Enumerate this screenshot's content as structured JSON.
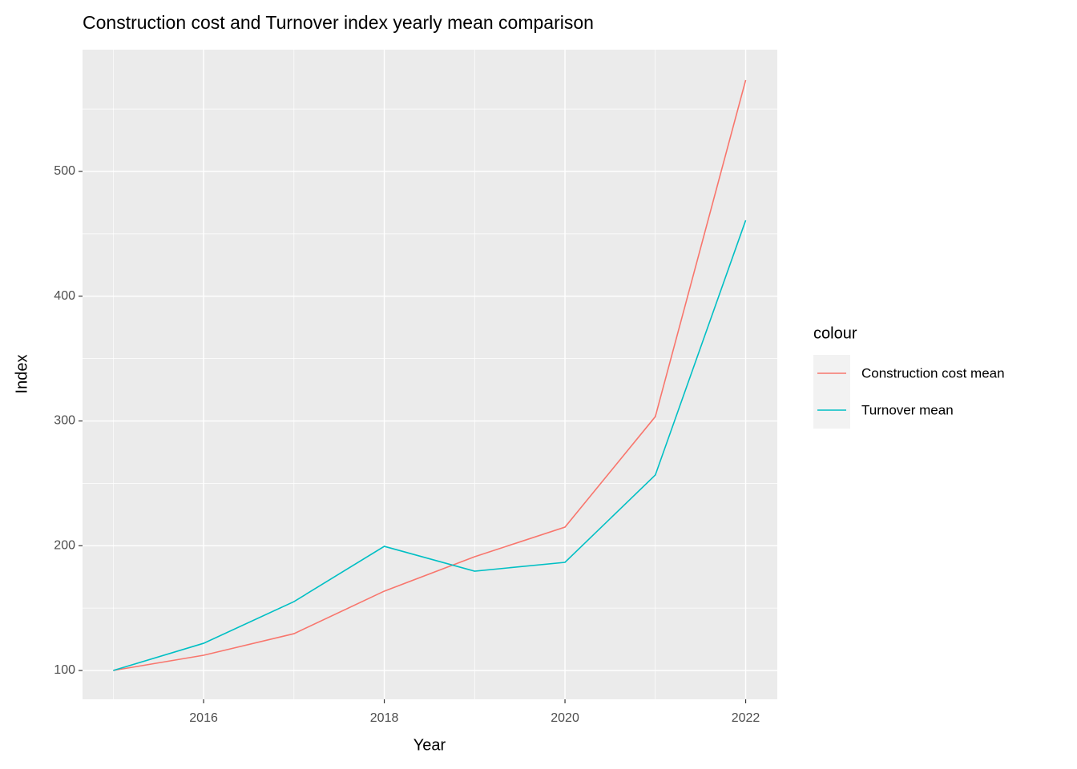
{
  "chart_data": {
    "type": "line",
    "title": "Construction cost and Turnover index yearly mean comparison",
    "x_label": "Year",
    "y_label": "Index",
    "legend_title": "colour",
    "x": [
      2015,
      2016,
      2017,
      2018,
      2019,
      2020,
      2021,
      2022
    ],
    "series": [
      {
        "name": "Construction cost mean",
        "color": "#F8766D",
        "values": [
          100,
          112.2,
          129.5,
          163.6,
          191.2,
          214.9,
          303.5,
          573.2
        ]
      },
      {
        "name": "Turnover mean",
        "color": "#00BFC4",
        "values": [
          100,
          121.8,
          155.2,
          199.5,
          179.6,
          186.7,
          256.7,
          460.8
        ]
      }
    ],
    "xlim": [
      2014.66,
      2022.35
    ],
    "ylim": [
      76.9,
      597.6
    ],
    "xticks": [
      2016,
      2018,
      2020,
      2022
    ],
    "yticks": [
      100,
      200,
      300,
      400,
      500
    ],
    "minor_xticks": [
      2015,
      2017,
      2019,
      2021
    ],
    "minor_yticks": [
      150,
      250,
      350,
      450,
      550
    ],
    "grid": true,
    "legend": "right"
  }
}
